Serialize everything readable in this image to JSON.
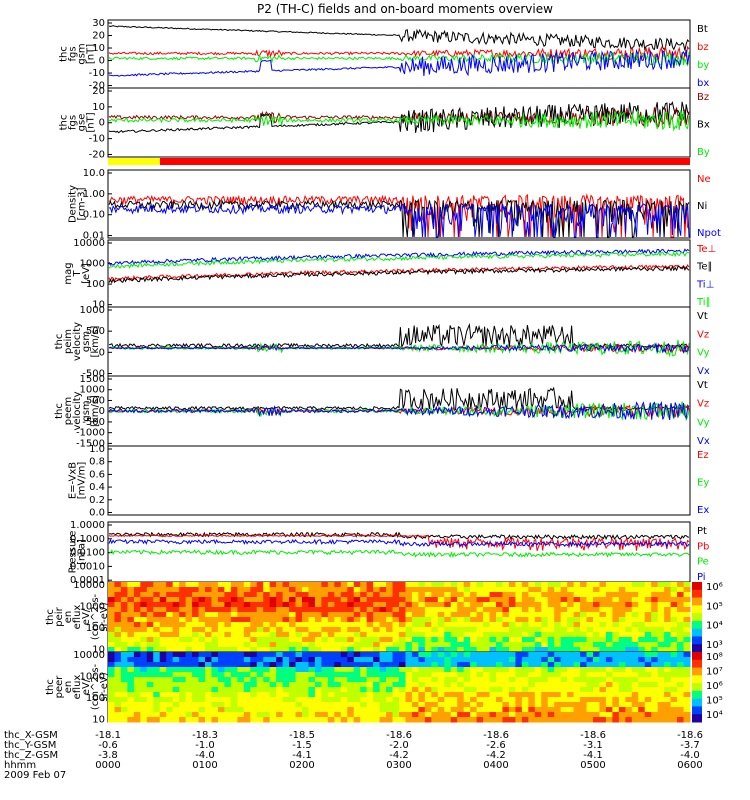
{
  "title": "P2 (TH-C) fields and on-board moments overview",
  "colors": {
    "black": "#000000",
    "red": "#ff0000",
    "green": "#00ee00",
    "blue": "#0000ff",
    "yellow": "#ffff00",
    "dark_red": "#990000"
  },
  "chart_data": [
    {
      "type": "line",
      "panel": "fgs_gsm",
      "ylabel_lines": [
        "thc",
        "fgs",
        "gsm",
        "[nT]"
      ],
      "yticks": [
        "30",
        "20",
        "10",
        "0",
        "-10",
        "-20"
      ],
      "ylim": [
        -25,
        30
      ],
      "series": [
        {
          "name": "Bt",
          "color": "#000000",
          "baseline": 25,
          "amp": 5,
          "shape": "bt"
        },
        {
          "name": "bz",
          "color": "#ff0000",
          "baseline": 3,
          "amp": 4,
          "shape": "noisy"
        },
        {
          "name": "by",
          "color": "#00ee00",
          "baseline": -1,
          "amp": 4,
          "shape": "noisy"
        },
        {
          "name": "bx",
          "color": "#0000ff",
          "baseline": -15,
          "amp": 8,
          "shape": "bx"
        }
      ]
    },
    {
      "type": "line",
      "panel": "fgs_gse",
      "ylabel_lines": [
        "thc",
        "fgs",
        "gse",
        "[nT]"
      ],
      "yticks": [
        "20",
        "10",
        "0",
        "-10",
        "-20"
      ],
      "ylim": [
        -25,
        22
      ],
      "series": [
        {
          "name": "Bz",
          "color": "#990000",
          "baseline": 2,
          "amp": 5,
          "shape": "noisy"
        },
        {
          "name": "Bx",
          "color": "#000000",
          "baseline": -8,
          "amp": 8,
          "shape": "bx"
        },
        {
          "name": "By",
          "color": "#00ee00",
          "baseline": 0,
          "amp": 5,
          "shape": "noisy"
        }
      ]
    },
    {
      "type": "line",
      "panel": "density",
      "ylabel_lines": [
        "Density",
        "[cm-3]"
      ],
      "yticks": [
        "10.0",
        "1.00",
        "0.10",
        "0.01"
      ],
      "ylim": [
        0.01,
        10
      ],
      "ylog": true,
      "series": [
        {
          "name": "Ne",
          "color": "#ff0000",
          "baseline": 0.5,
          "amp": 0.3,
          "shape": "density"
        },
        {
          "name": "Ni",
          "color": "#000000",
          "baseline": 0.3,
          "amp": 0.1,
          "shape": "density"
        },
        {
          "name": "Npot",
          "color": "#0000ff",
          "baseline": 0.2,
          "amp": 0.1,
          "shape": "density"
        }
      ]
    },
    {
      "type": "line",
      "panel": "temperature",
      "ylabel_lines": [
        "mag",
        "T",
        "[eV]"
      ],
      "yticks": [
        "10000",
        "1000",
        "100",
        "10"
      ],
      "ylim": [
        10,
        10000
      ],
      "ylog": true,
      "series": [
        {
          "name": "Te⊥",
          "color": "#ff0000",
          "baseline": 300,
          "amp": 200,
          "shape": "temp"
        },
        {
          "name": "Te∥",
          "color": "#000000",
          "baseline": 250,
          "amp": 150,
          "shape": "temp"
        },
        {
          "name": "Ti⊥",
          "color": "#0000ff",
          "baseline": 1500,
          "amp": 800,
          "shape": "temp"
        },
        {
          "name": "Ti∥",
          "color": "#00ee00",
          "baseline": 1100,
          "amp": 600,
          "shape": "temp"
        }
      ]
    },
    {
      "type": "line",
      "panel": "peim_velocity",
      "ylabel_lines": [
        "thc",
        "peim",
        "velocity",
        "gsm",
        "[km/s]"
      ],
      "yticks": [
        "1000",
        "500",
        "0",
        "-500"
      ],
      "ylim": [
        -750,
        1100
      ],
      "series": [
        {
          "name": "Vt",
          "color": "#000000",
          "baseline": 50,
          "amp": 600,
          "shape": "burst"
        },
        {
          "name": "Vz",
          "color": "#ff0000",
          "baseline": 0,
          "amp": 80,
          "shape": "noisy"
        },
        {
          "name": "Vy",
          "color": "#00ee00",
          "baseline": 0,
          "amp": 150,
          "shape": "noisy"
        },
        {
          "name": "Vx",
          "color": "#0000ff",
          "baseline": 0,
          "amp": 80,
          "shape": "noisy"
        }
      ]
    },
    {
      "type": "line",
      "panel": "peem_velocity",
      "ylabel_lines": [
        "thc",
        "peem",
        "velocity",
        "gsm",
        "[km/s]"
      ],
      "yticks": [
        "1500",
        "1000",
        "500",
        "0",
        "-500",
        "-1000",
        "-1500"
      ],
      "ylim": [
        -1600,
        1600
      ],
      "series": [
        {
          "name": "Vt",
          "color": "#000000",
          "baseline": 100,
          "amp": 1000,
          "shape": "burst"
        },
        {
          "name": "Vz",
          "color": "#ff0000",
          "baseline": 0,
          "amp": 200,
          "shape": "noisy"
        },
        {
          "name": "Vy",
          "color": "#00ee00",
          "baseline": 0,
          "amp": 300,
          "shape": "noisy"
        },
        {
          "name": "Vx",
          "color": "#0000ff",
          "baseline": 0,
          "amp": 300,
          "shape": "noisy"
        }
      ]
    },
    {
      "type": "line",
      "panel": "efield",
      "ylabel_lines": [
        "E=-VxB",
        "[mV/m]"
      ],
      "yticks": [
        "1.0",
        "0.8",
        "0.6",
        "0.4",
        "0.2",
        "0.0"
      ],
      "ylim": [
        0,
        1
      ],
      "series": [
        {
          "name": "Ez",
          "color": "#ff0000"
        },
        {
          "name": "Ey",
          "color": "#00ee00"
        },
        {
          "name": "Ex",
          "color": "#0000ff"
        }
      ]
    },
    {
      "type": "line",
      "panel": "pressure",
      "ylabel_lines": [
        "Pressure",
        "[nPa]"
      ],
      "yticks": [
        "1.0000",
        "0.1000",
        "0.0100",
        "0.0010",
        "0.0001"
      ],
      "ylim": [
        0.0001,
        1
      ],
      "ylog": true,
      "series": [
        {
          "name": "Pt",
          "color": "#000000",
          "baseline": 0.15,
          "amp": 0.05,
          "shape": "press"
        },
        {
          "name": "Pb",
          "color": "#ff0000",
          "baseline": 0.12,
          "amp": 0.08,
          "shape": "pressb"
        },
        {
          "name": "Pe",
          "color": "#00ee00",
          "baseline": 0.01,
          "amp": 0.005,
          "shape": "press"
        },
        {
          "name": "Pi",
          "color": "#0000ff",
          "baseline": 0.05,
          "amp": 0.02,
          "shape": "press"
        }
      ]
    },
    {
      "type": "heatmap",
      "panel": "peir_spectrogram",
      "ylabel_lines": [
        "thc",
        "peir",
        "en",
        "eflux",
        "eV/",
        "(cm^2-s-",
        "sr-eV)"
      ],
      "yticks": [
        "10000",
        "1000",
        "100",
        "10"
      ],
      "ylim": [
        10,
        30000
      ],
      "ylog": true,
      "colorbar_ticks": [
        "10⁶",
        "10⁵",
        "10⁴",
        "10³"
      ]
    },
    {
      "type": "heatmap",
      "panel": "peer_spectrogram",
      "ylabel_lines": [
        "thc",
        "peer",
        "en",
        "eflux",
        "eV/",
        "(cm^2-s-",
        "sr-eV)"
      ],
      "yticks": [
        "10000",
        "1000",
        "100",
        "10"
      ],
      "ylim": [
        10,
        30000
      ],
      "ylog": true,
      "colorbar_ticks": [
        "10⁸",
        "10⁷",
        "10⁶",
        "10⁵",
        "10⁴"
      ]
    }
  ],
  "x_axis": {
    "rows": [
      {
        "label": "thc_X-GSM",
        "values": [
          "-18.1",
          "-18.3",
          "-18.5",
          "-18.6",
          "-18.6",
          "-18.6",
          "-18.6"
        ]
      },
      {
        "label": "thc_Y-GSM",
        "values": [
          "-0.6",
          "-1.0",
          "-1.5",
          "-2.0",
          "-2.6",
          "-3.1",
          "-3.7"
        ]
      },
      {
        "label": "thc_Z-GSM",
        "values": [
          "-3.8",
          "-4.0",
          "-4.1",
          "-4.2",
          "-4.2",
          "-4.1",
          "-4.0"
        ]
      },
      {
        "label": "hhmm",
        "values": [
          "0000",
          "0100",
          "0200",
          "0300",
          "0400",
          "0500",
          "0600"
        ]
      }
    ],
    "date": "2009 Feb 07"
  }
}
